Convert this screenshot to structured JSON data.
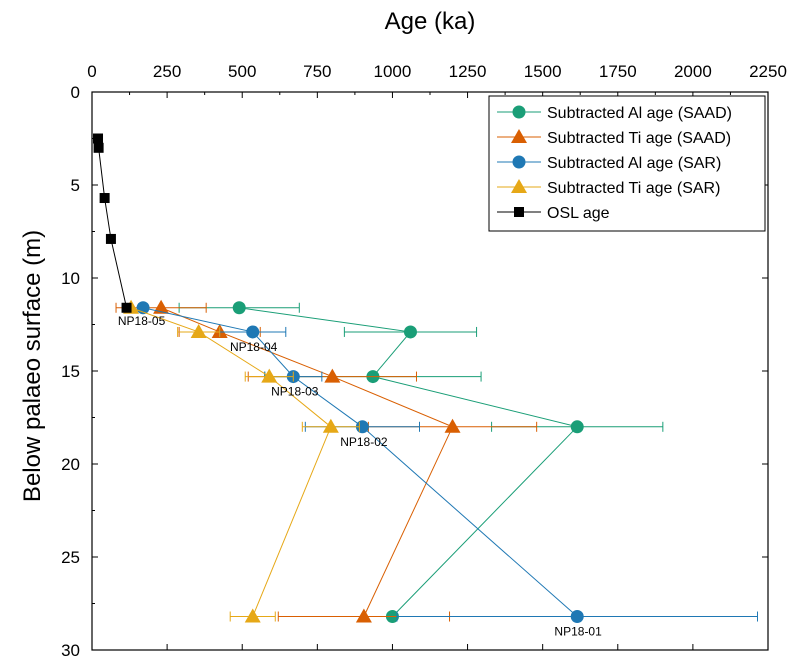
{
  "chart_data": {
    "type": "scatter",
    "title": "",
    "xlabel": "Age (ka)",
    "ylabel": "Below palaeo surface (m)",
    "x_axis_position": "top",
    "y_inverted": true,
    "xlim": [
      0,
      2250
    ],
    "ylim": [
      0,
      30
    ],
    "x_ticks": [
      0,
      250,
      500,
      750,
      1000,
      1250,
      1500,
      1750,
      2000,
      2250
    ],
    "y_ticks": [
      0,
      5,
      10,
      15,
      20,
      25,
      30
    ],
    "legend_position": "top-right",
    "series": [
      {
        "name": "Subtracted Al age (SAAD)",
        "marker": "circle",
        "color": "#1a9e77",
        "points": [
          {
            "x": 490,
            "y": 11.6,
            "err": 200
          },
          {
            "x": 1060,
            "y": 12.9,
            "err": 220
          },
          {
            "x": 935,
            "y": 15.3,
            "err": 360
          },
          {
            "x": 1615,
            "y": 18.0,
            "err": 285
          },
          {
            "x": 1000,
            "y": 28.2,
            "err": 0
          }
        ]
      },
      {
        "name": "Subtracted Ti age (SAAD)",
        "marker": "triangle",
        "color": "#d95f02",
        "points": [
          {
            "x": 230,
            "y": 11.6,
            "err": 150
          },
          {
            "x": 425,
            "y": 12.9,
            "err": 135
          },
          {
            "x": 800,
            "y": 15.3,
            "err": 280
          },
          {
            "x": 1200,
            "y": 18.0,
            "err": 280
          },
          {
            "x": 905,
            "y": 28.2,
            "err": 285
          }
        ]
      },
      {
        "name": "Subtracted Al age (SAR)",
        "marker": "circle",
        "color": "#1f78b4",
        "points": [
          {
            "x": 170,
            "y": 11.6,
            "err": 0
          },
          {
            "x": 535,
            "y": 12.9,
            "err": 110
          },
          {
            "x": 670,
            "y": 15.3,
            "err": 95
          },
          {
            "x": 900,
            "y": 18.0,
            "err": 190
          },
          {
            "x": 1615,
            "y": 28.2,
            "err": 600
          }
        ]
      },
      {
        "name": "Subtracted Ti age (SAR)",
        "marker": "triangle",
        "color": "#e6a817",
        "points": [
          {
            "x": 130,
            "y": 11.6,
            "err": 0
          },
          {
            "x": 355,
            "y": 12.9,
            "err": 70
          },
          {
            "x": 590,
            "y": 15.3,
            "err": 80
          },
          {
            "x": 795,
            "y": 18.0,
            "err": 95
          },
          {
            "x": 535,
            "y": 28.2,
            "err": 75
          }
        ]
      },
      {
        "name": "OSL age",
        "marker": "square",
        "color": "#000000",
        "points": [
          {
            "x": 20,
            "y": 2.5,
            "err": 0
          },
          {
            "x": 22,
            "y": 3.0,
            "err": 0
          },
          {
            "x": 42,
            "y": 5.7,
            "err": 0
          },
          {
            "x": 63,
            "y": 7.9,
            "err": 0
          },
          {
            "x": 115,
            "y": 11.6,
            "err": 0
          }
        ]
      }
    ],
    "annotations": [
      {
        "text": "NP18-05",
        "x": 165,
        "y": 12.2
      },
      {
        "text": "NP18-04",
        "x": 538,
        "y": 13.6
      },
      {
        "text": "NP18-03",
        "x": 675,
        "y": 16.0
      },
      {
        "text": "NP18-02",
        "x": 905,
        "y": 18.7
      },
      {
        "text": "NP18-01",
        "x": 1618,
        "y": 28.9
      }
    ]
  }
}
